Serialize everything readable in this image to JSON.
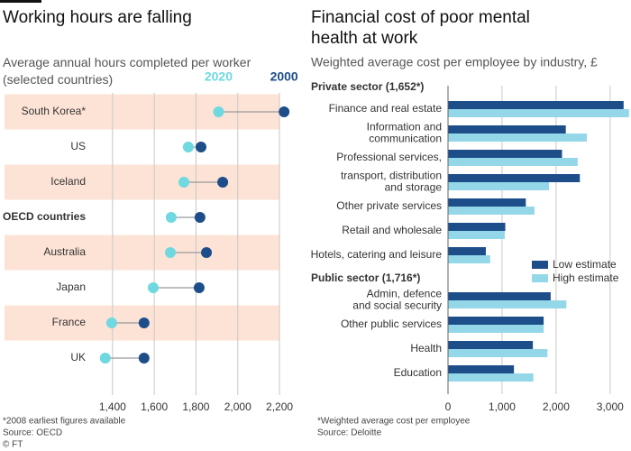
{
  "chart_data": [
    {
      "type": "dumbbell",
      "title": "Working hours are falling",
      "subtitle": "Average annual hours completed per worker\n(selected countries)",
      "categories": [
        "South Korea*",
        "US",
        "Iceland",
        "OECD countries",
        "Australia",
        "Japan",
        "France",
        "UK"
      ],
      "bold_category": 3,
      "bands": true,
      "band_color": "#fde3d6",
      "grid": true,
      "series": [
        {
          "name": "2020",
          "color": "#6fd8e0",
          "values": [
            1908,
            1763,
            1742,
            1681,
            1677,
            1595,
            1396,
            1365
          ]
        },
        {
          "name": "2000",
          "color": "#1d4e89",
          "values": [
            2222,
            1824,
            1928,
            1819,
            1850,
            1815,
            1551,
            1551
          ]
        }
      ],
      "xlim": [
        1310,
        2230
      ],
      "xticks": [
        {
          "value": 1400,
          "label": "1,400"
        },
        {
          "value": 1600,
          "label": "1,600"
        },
        {
          "value": 1800,
          "label": "1,800"
        },
        {
          "value": 2000,
          "label": "2,000"
        },
        {
          "value": 2200,
          "label": "2,200"
        }
      ],
      "footnote": "*2008 earliest figures available",
      "source": "Source: OECD"
    },
    {
      "type": "grouped_hbar",
      "title": "Financial cost of poor mental\nhealth at work",
      "subtitle": "Weighted average cost per employee by industry, £",
      "groups": [
        {
          "name": "Private sector (1,652*)",
          "categories": [
            "Finance and real estate",
            "Information and\ncommunication",
            "Professional services,",
            "transport, distribution\nand storage",
            "Other private services",
            "Retail and wholesale",
            "Hotels, catering and leisure"
          ]
        },
        {
          "name": "Public sector (1,716*)",
          "categories": [
            "Admin, defence\nand social security",
            "Other public services",
            "Health",
            "Education"
          ]
        }
      ],
      "series": [
        {
          "name": "Low estimate",
          "color": "#1d4e89",
          "values": [
            [
              3250,
              2180,
              2110,
              2440,
              1440,
              1060,
              700
            ],
            [
              1900,
              1770,
              1570,
              1220
            ]
          ]
        },
        {
          "name": "High estimate",
          "color": "#94d7e8",
          "values": [
            [
              3350,
              2570,
              2400,
              1870,
              1600,
              1050,
              780
            ],
            [
              2190,
              1770,
              1840,
              1580
            ]
          ]
        }
      ],
      "xlim": [
        0,
        3370
      ],
      "xticks": [
        0,
        {
          "value": 1000,
          "label": "1,000"
        },
        {
          "value": 2000,
          "label": "2,000"
        },
        {
          "value": 3000,
          "label": "3,000"
        }
      ],
      "grid": true,
      "legend": "right",
      "footnote": "*Weighted average cost per employee",
      "source": "Source: Deloitte"
    }
  ],
  "credit": "© FT"
}
